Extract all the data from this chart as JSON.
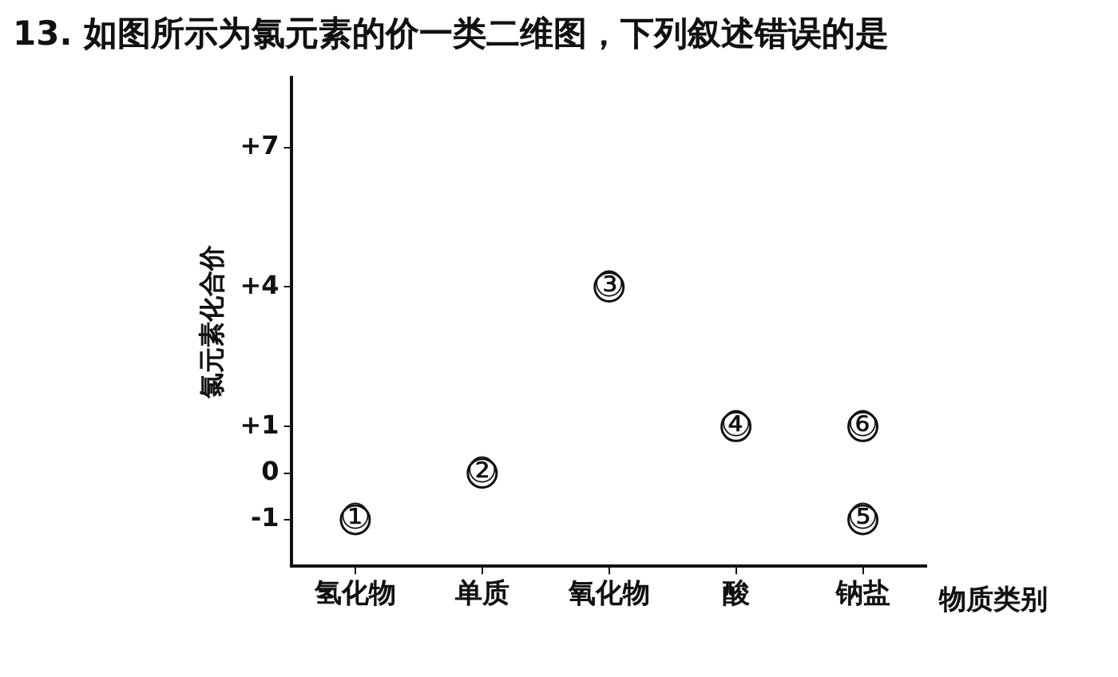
{
  "chart_data": {
    "type": "scatter",
    "title": "13. 如图所示为氯元素的价一类二维图，下列叙述错误的是",
    "xlabel": "物质类别",
    "ylabel": "氯元素化合价",
    "categories": [
      "氢化物",
      "单质",
      "氧化物",
      "酸",
      "钠盐"
    ],
    "series": [
      {
        "x": [
          "氢化物",
          "单质",
          "氧化物",
          "酸",
          "钠盐",
          "钠盐"
        ],
        "values": [
          -1,
          0,
          4,
          1,
          1,
          -1
        ],
        "color": "#111111"
      }
    ],
    "annotations": [
      {
        "text": "①",
        "x": "氢化物",
        "y": -1
      },
      {
        "text": "②",
        "x": "单质",
        "y": 0
      },
      {
        "text": "③",
        "x": "氧化物",
        "y": 4
      },
      {
        "text": "④",
        "x": "酸",
        "y": 1
      },
      {
        "text": "⑥",
        "x": "钠盐",
        "y": 1
      },
      {
        "text": "⑤",
        "x": "钠盐",
        "y": -1
      }
    ],
    "ylim": [
      -2,
      8.5
    ],
    "yticks": [
      {
        "value": -1,
        "label": "-1"
      },
      0,
      {
        "value": 1,
        "label": "+1"
      },
      {
        "value": 4,
        "label": "+4"
      },
      {
        "value": 7,
        "label": "+7"
      }
    ],
    "grid": false,
    "legend": false,
    "marker": "circle"
  }
}
